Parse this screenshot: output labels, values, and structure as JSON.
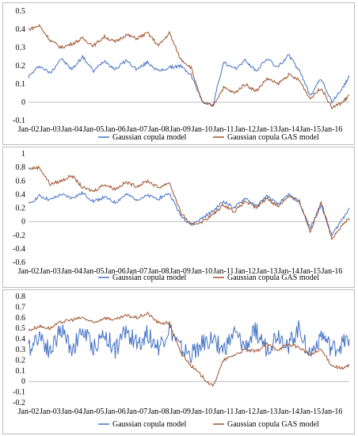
{
  "chart_data": [
    {
      "type": "line",
      "x_tick_labels": [
        "Jan-02",
        "Jan-03",
        "Jan-04",
        "Jan-05",
        "Jan-06",
        "Jan-07",
        "Jan-08",
        "Jan-09",
        "Jan-10",
        "Jan-11",
        "Jan-12",
        "Jan-13",
        "Jan-14",
        "Jan-15",
        "Jan-16"
      ],
      "y_tick_labels": [
        "0.5",
        "0.4",
        "0.3",
        "0.2",
        "0.1",
        "0",
        "-0.1"
      ],
      "ylim": [
        -0.1,
        0.5
      ],
      "grid": false,
      "legend_position": "bottom",
      "series": [
        {
          "name": "Gaussian copula model",
          "color": "#4472c4",
          "x": [
            2002.0,
            2002.5,
            2003.0,
            2003.5,
            2004.0,
            2004.5,
            2005.0,
            2005.5,
            2006.0,
            2006.5,
            2007.0,
            2007.5,
            2008.0,
            2008.5,
            2009.0,
            2009.5,
            2010.0,
            2010.5,
            2011.0,
            2011.5,
            2012.0,
            2012.5,
            2013.0,
            2013.5,
            2014.0,
            2014.5,
            2015.0,
            2015.5,
            2016.0,
            2016.5,
            2016.8
          ],
          "y": [
            0.14,
            0.2,
            0.16,
            0.24,
            0.18,
            0.25,
            0.17,
            0.23,
            0.18,
            0.23,
            0.18,
            0.22,
            0.17,
            0.19,
            0.2,
            0.15,
            0.01,
            -0.02,
            0.22,
            0.18,
            0.23,
            0.17,
            0.24,
            0.19,
            0.26,
            0.17,
            0.04,
            0.13,
            0.0,
            0.08,
            0.14
          ]
        },
        {
          "name": "Gaussian copula GAS model",
          "color": "#a0522d",
          "x": [
            2002.0,
            2002.5,
            2003.0,
            2003.5,
            2004.0,
            2004.5,
            2005.0,
            2005.5,
            2006.0,
            2006.5,
            2007.0,
            2007.5,
            2008.0,
            2008.5,
            2009.0,
            2009.5,
            2010.0,
            2010.5,
            2011.0,
            2011.5,
            2012.0,
            2012.5,
            2013.0,
            2013.5,
            2014.0,
            2014.5,
            2015.0,
            2015.5,
            2016.0,
            2016.5,
            2016.8
          ],
          "y": [
            0.4,
            0.42,
            0.34,
            0.3,
            0.32,
            0.35,
            0.31,
            0.36,
            0.33,
            0.37,
            0.35,
            0.38,
            0.31,
            0.38,
            0.24,
            0.19,
            0.0,
            -0.02,
            0.08,
            0.05,
            0.1,
            0.06,
            0.13,
            0.1,
            0.15,
            0.12,
            0.02,
            0.08,
            -0.03,
            0.0,
            0.04
          ]
        }
      ]
    },
    {
      "type": "line",
      "x_tick_labels": [
        "Jan-02",
        "Jan-03",
        "Jan-04",
        "Jan-05",
        "Jan-06",
        "Jan-07",
        "Jan-08",
        "Jan-09",
        "Jan-10",
        "Jan-11",
        "Jan-12",
        "Jan-13",
        "Jan-14",
        "Jan-15",
        "Jan-16"
      ],
      "y_tick_labels": [
        "1",
        "0.8",
        "0.6",
        "0.4",
        "0.2",
        "0",
        "-0.2",
        "-0.4",
        "-0.6"
      ],
      "ylim": [
        -0.6,
        1.0
      ],
      "grid": false,
      "legend_position": "bottom",
      "series": [
        {
          "name": "Gaussian copula model",
          "color": "#4472c4",
          "x": [
            2002.0,
            2002.5,
            2003.0,
            2003.5,
            2004.0,
            2004.5,
            2005.0,
            2005.5,
            2006.0,
            2006.5,
            2007.0,
            2007.5,
            2008.0,
            2008.5,
            2009.0,
            2009.5,
            2010.0,
            2010.5,
            2011.0,
            2011.5,
            2012.0,
            2012.5,
            2013.0,
            2013.5,
            2014.0,
            2014.5,
            2015.0,
            2015.5,
            2016.0,
            2016.5,
            2016.8
          ],
          "y": [
            0.25,
            0.38,
            0.32,
            0.4,
            0.35,
            0.42,
            0.3,
            0.36,
            0.28,
            0.4,
            0.33,
            0.38,
            0.34,
            0.42,
            0.1,
            -0.05,
            0.05,
            0.15,
            0.3,
            0.2,
            0.35,
            0.22,
            0.38,
            0.25,
            0.4,
            0.28,
            -0.1,
            0.25,
            -0.2,
            0.05,
            0.2
          ]
        },
        {
          "name": "Gaussian copula GAS model",
          "color": "#a0522d",
          "x": [
            2002.0,
            2002.5,
            2003.0,
            2003.5,
            2004.0,
            2004.5,
            2005.0,
            2005.5,
            2006.0,
            2006.5,
            2007.0,
            2007.5,
            2008.0,
            2008.5,
            2009.0,
            2009.5,
            2010.0,
            2010.5,
            2011.0,
            2011.5,
            2012.0,
            2012.5,
            2013.0,
            2013.5,
            2014.0,
            2014.5,
            2015.0,
            2015.5,
            2016.0,
            2016.5,
            2016.8
          ],
          "y": [
            0.78,
            0.8,
            0.55,
            0.6,
            0.68,
            0.5,
            0.45,
            0.55,
            0.48,
            0.58,
            0.52,
            0.6,
            0.5,
            0.58,
            0.15,
            -0.05,
            0.0,
            0.1,
            0.25,
            0.15,
            0.3,
            0.2,
            0.35,
            0.22,
            0.38,
            0.3,
            -0.15,
            0.3,
            -0.25,
            -0.05,
            0.05
          ]
        }
      ]
    },
    {
      "type": "line",
      "x_tick_labels": [
        "Jan-02",
        "Jan-03",
        "Jan-04",
        "Jan-05",
        "Jan-06",
        "Jan-07",
        "Jan-08",
        "Jan-09",
        "Jan-10",
        "Jan-11",
        "Jan-12",
        "Jan-13",
        "Jan-14",
        "Jan-15",
        "Jan-16"
      ],
      "y_tick_labels": [
        "0.8",
        "0.7",
        "0.6",
        "0.5",
        "0.4",
        "0.3",
        "0.2",
        "0.1",
        "0",
        "-0.1",
        "-0.2"
      ],
      "ylim": [
        -0.2,
        0.8
      ],
      "grid": false,
      "legend_position": "bottom",
      "series": [
        {
          "name": "Gaussian copula model",
          "color": "#4472c4",
          "x": [
            2002.0,
            2002.5,
            2003.0,
            2003.5,
            2004.0,
            2004.5,
            2005.0,
            2005.5,
            2006.0,
            2006.5,
            2007.0,
            2007.5,
            2008.0,
            2008.5,
            2009.0,
            2009.5,
            2010.0,
            2010.5,
            2011.0,
            2011.5,
            2012.0,
            2012.5,
            2013.0,
            2013.5,
            2014.0,
            2014.5,
            2015.0,
            2015.5,
            2016.0,
            2016.5,
            2016.8
          ],
          "y": [
            0.3,
            0.45,
            0.28,
            0.5,
            0.3,
            0.48,
            0.32,
            0.45,
            0.3,
            0.48,
            0.35,
            0.45,
            0.32,
            0.5,
            0.3,
            0.25,
            0.35,
            0.4,
            0.3,
            0.45,
            0.32,
            0.48,
            0.3,
            0.45,
            0.35,
            0.5,
            0.25,
            0.45,
            0.3,
            0.35,
            0.4
          ]
        },
        {
          "name": "Gaussian copula GAS model",
          "color": "#a0522d",
          "x": [
            2002.0,
            2002.5,
            2003.0,
            2003.5,
            2004.0,
            2004.5,
            2005.0,
            2005.5,
            2006.0,
            2006.5,
            2007.0,
            2007.5,
            2008.0,
            2008.5,
            2009.0,
            2009.5,
            2010.0,
            2010.5,
            2011.0,
            2011.5,
            2012.0,
            2012.5,
            2013.0,
            2013.5,
            2014.0,
            2014.5,
            2015.0,
            2015.5,
            2016.0,
            2016.5,
            2016.8
          ],
          "y": [
            0.48,
            0.52,
            0.5,
            0.56,
            0.58,
            0.6,
            0.55,
            0.6,
            0.58,
            0.62,
            0.6,
            0.64,
            0.55,
            0.55,
            0.28,
            0.15,
            0.05,
            -0.05,
            0.2,
            0.25,
            0.3,
            0.28,
            0.35,
            0.3,
            0.35,
            0.32,
            0.25,
            0.3,
            0.15,
            0.12,
            0.15
          ]
        }
      ]
    }
  ]
}
